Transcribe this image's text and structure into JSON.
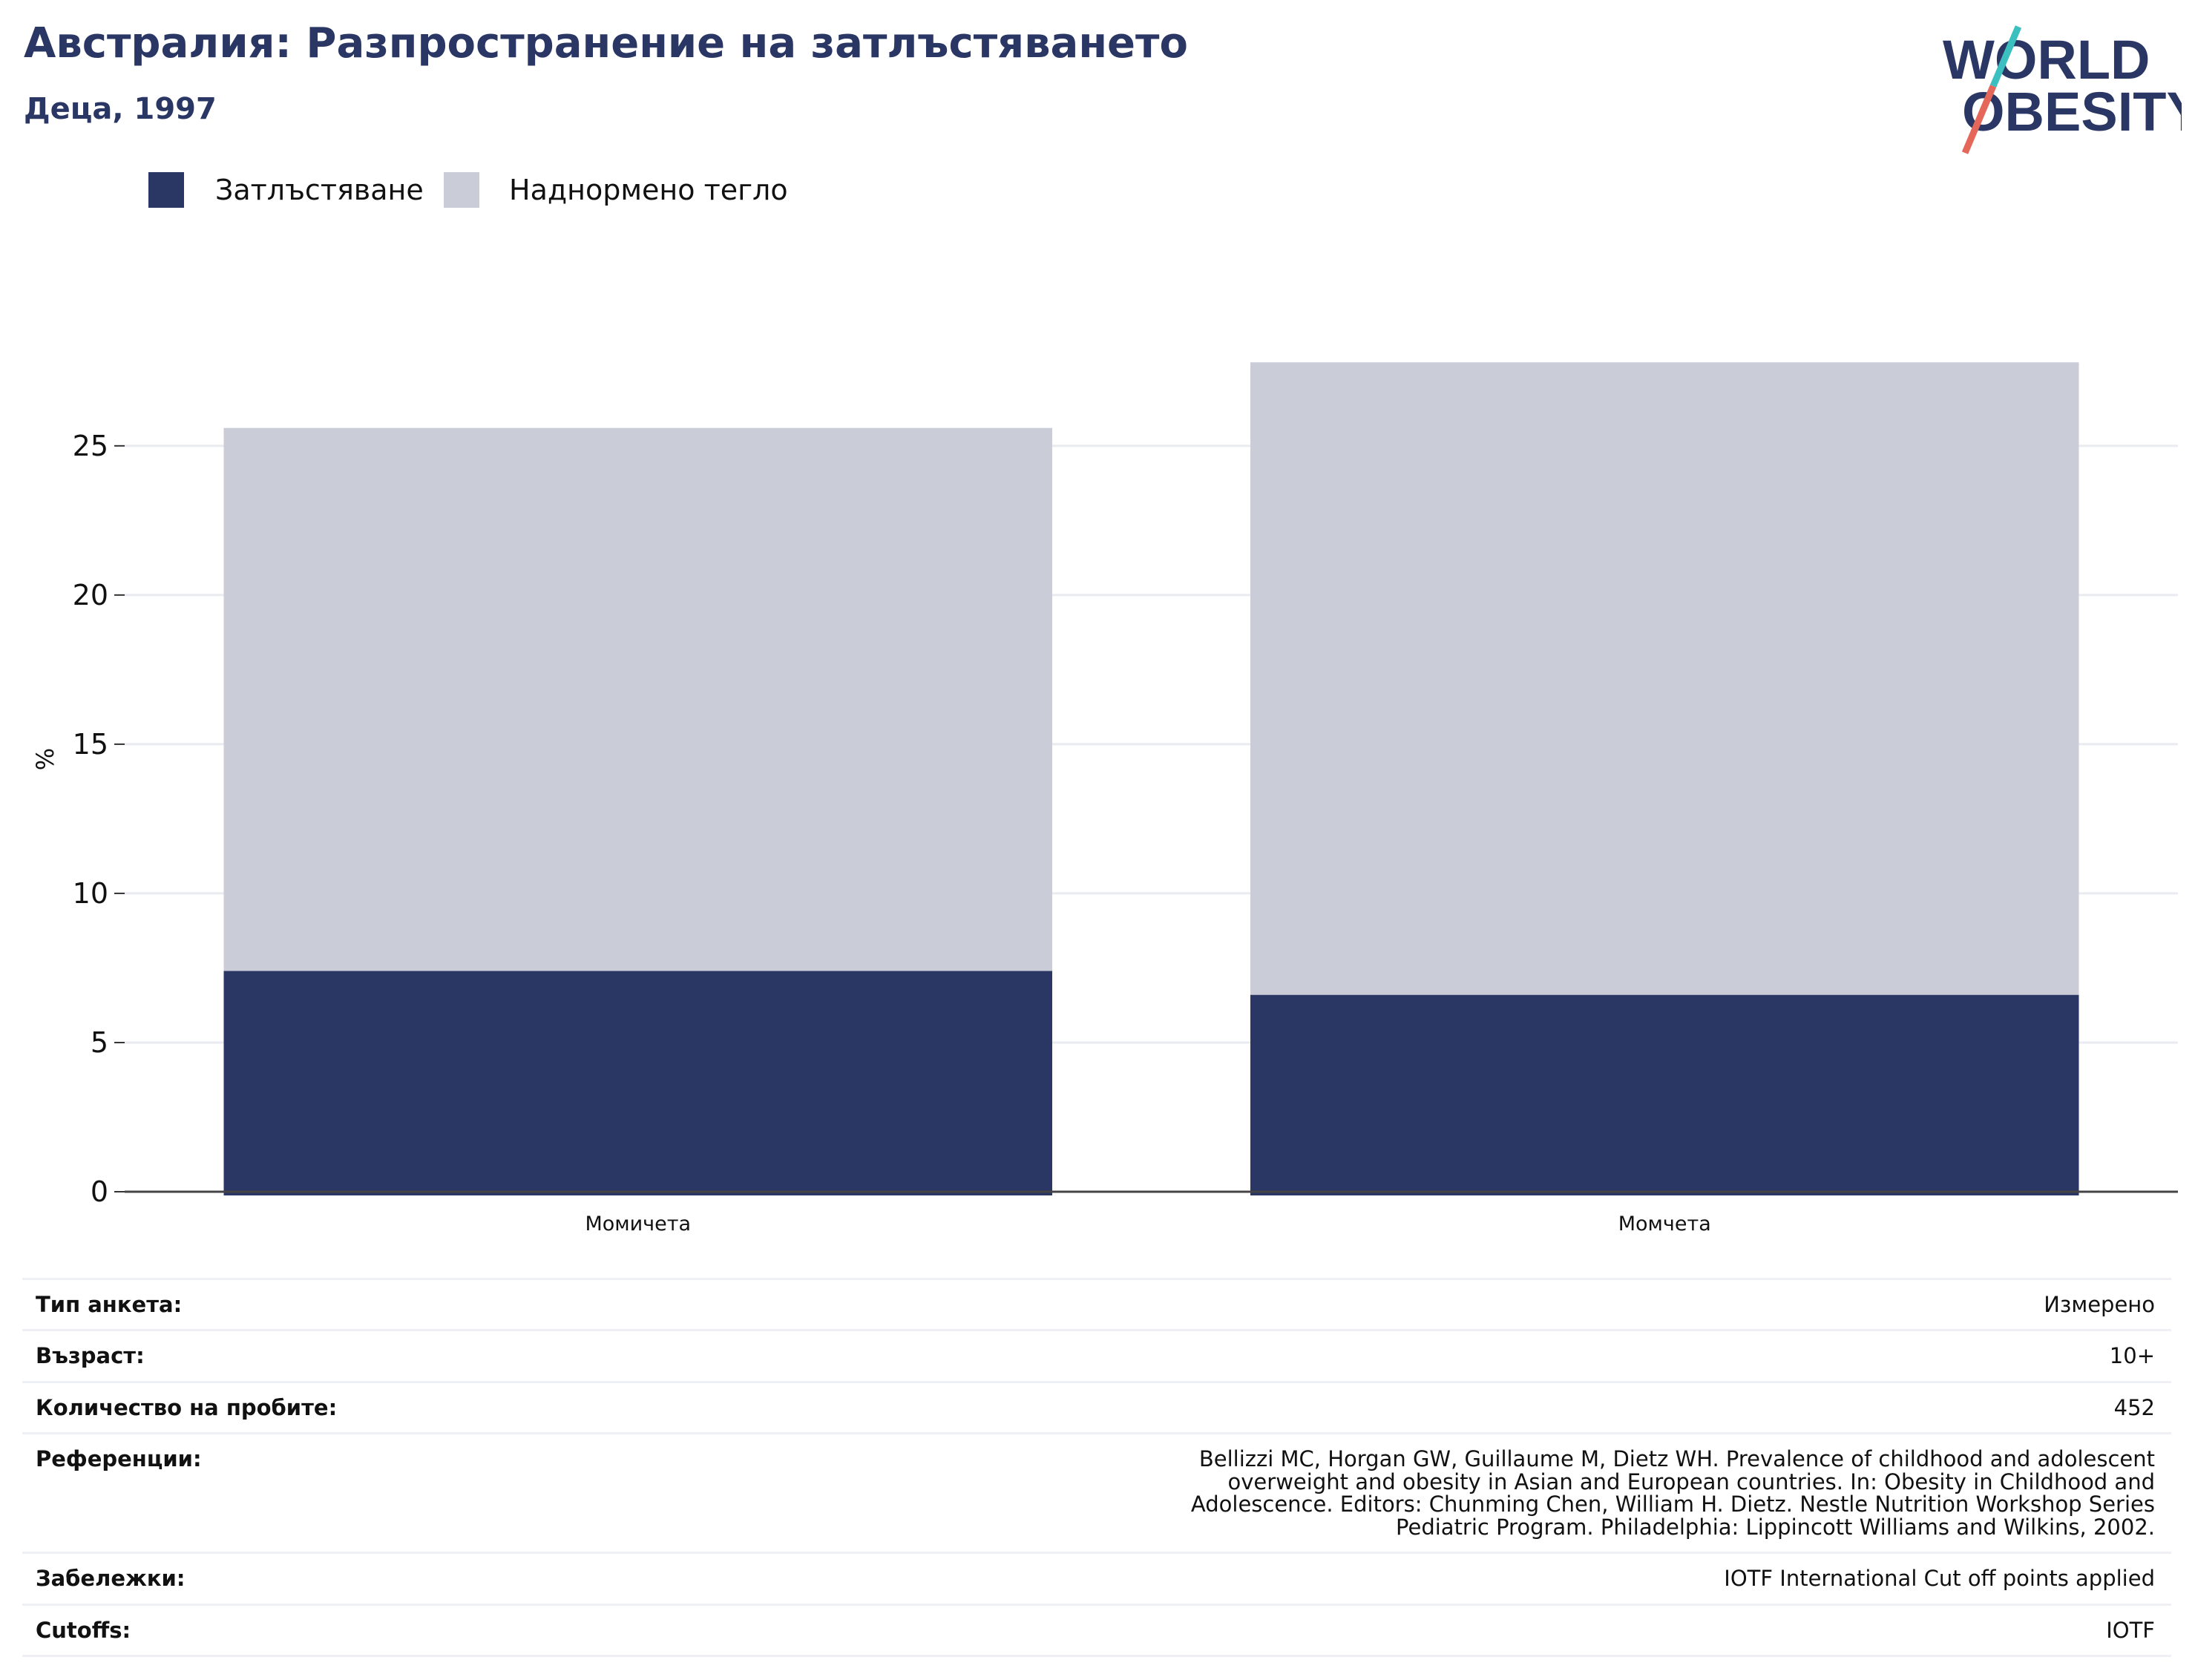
{
  "header": {
    "title": "Австралия: Разпространение на затлъстяването",
    "subtitle": "Деца, 1997"
  },
  "logo": {
    "line1": "WORLD",
    "line2": "OBESITY",
    "colors": {
      "text": "#2a3764",
      "slash_top": "#3bbfbf",
      "slash_bottom": "#e4675a"
    }
  },
  "legend": {
    "items": [
      {
        "label": "Затлъстяване",
        "color": "#2a3764"
      },
      {
        "label": "Наднормено тегло",
        "color": "#caccd8"
      }
    ]
  },
  "chart_data": {
    "type": "bar",
    "stacked": true,
    "categories": [
      "Момичета",
      "Момчета"
    ],
    "series": [
      {
        "name": "Затлъстяване",
        "values": [
          7.4,
          6.6
        ],
        "color": "#2a3764"
      },
      {
        "name": "Наднормено тегло",
        "values": [
          18.2,
          21.2
        ],
        "color": "#caccd8"
      }
    ],
    "ylabel": "%",
    "yticks": [
      0,
      5,
      10,
      15,
      20,
      25
    ],
    "ylim": [
      0,
      29
    ],
    "grid": true,
    "legend_position": "top-left"
  },
  "info": {
    "rows": [
      {
        "key": "Тип анкета:",
        "value": "Измерено"
      },
      {
        "key": "Възраст:",
        "value": "10+"
      },
      {
        "key": "Количество на пробите:",
        "value": "452"
      },
      {
        "key": "Референции:",
        "value": "Bellizzi MC, Horgan GW, Guillaume M, Dietz WH. Prevalence of childhood and adolescent overweight and obesity in Asian and European countries. In: Obesity in Childhood and Adolescence. Editors: Chunming Chen, William H. Dietz. Nestle Nutrition Workshop Series Pediatric Program. Philadelphia: Lippincott Williams and Wilkins, 2002."
      },
      {
        "key": "Забележки:",
        "value": "IOTF International Cut off points applied"
      },
      {
        "key": "Cutoffs:",
        "value": "IOTF"
      }
    ]
  }
}
